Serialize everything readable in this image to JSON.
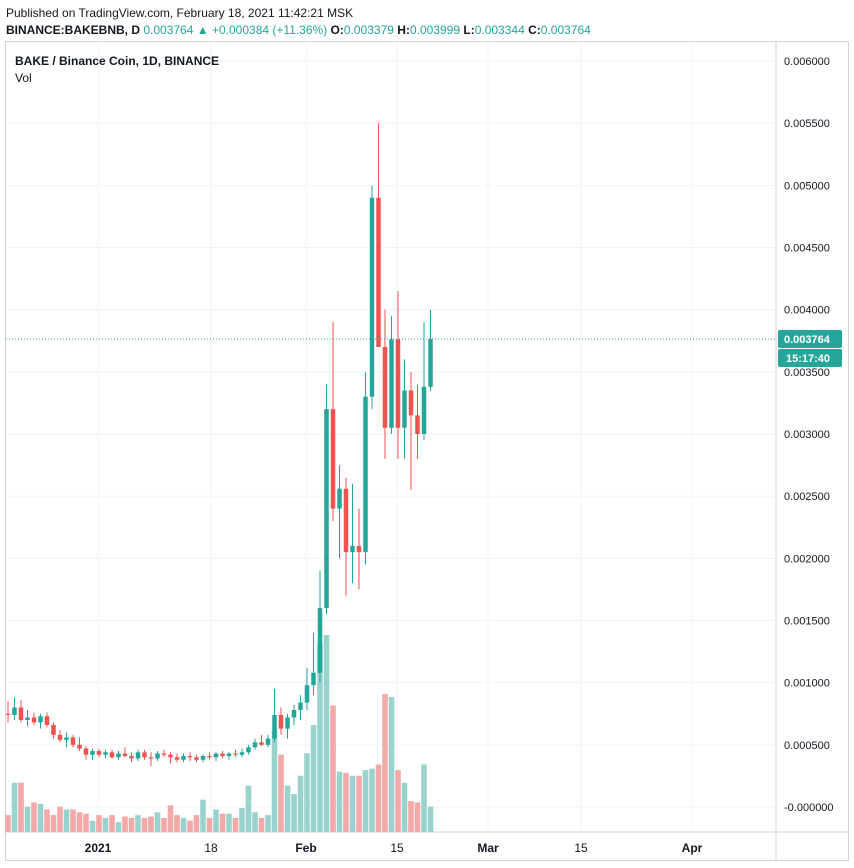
{
  "header": {
    "published": "Published on TradingView.com, February 18, 2021 11:42:21 MSK",
    "symbol": "BINANCE:BAKEBNB, D",
    "last": "0.003764",
    "change": "+0.000384 (+11.36%)",
    "o_label": "O:",
    "o_value": "0.003379",
    "h_label": "H:",
    "h_value": "0.003999",
    "l_label": "L:",
    "l_value": "0.003344",
    "c_label": "C:",
    "c_value": "0.003764"
  },
  "legend": {
    "title": "BAKE / Binance Coin, 1D, BINANCE",
    "vol": "Vol"
  },
  "colors": {
    "up": "#26a69a",
    "down": "#ef5350",
    "up_vol": "#9ad3cd",
    "down_vol": "#f3a9a8",
    "grid": "#f0f3fa",
    "axis": "#d1d4dc"
  },
  "chart_data": {
    "type": "candlestick",
    "price_scale_labels": [
      "0.006000",
      "0.005500",
      "0.005000",
      "0.004500",
      "0.004000",
      "0.003500",
      "0.003000",
      "0.002500",
      "0.002000",
      "0.001500",
      "0.001000",
      "0.000500",
      "-0.000000"
    ],
    "ylim": [
      -2.5e-05,
      0.00605
    ],
    "x_tick_labels": [
      "2021",
      "18",
      "Feb",
      "15",
      "Mar",
      "15",
      "Apr"
    ],
    "last_price_label": "0.003764",
    "countdown_label": "15:17:40",
    "candles": [
      {
        "o": 0.00075,
        "h": 0.00085,
        "l": 0.00068,
        "c": 0.00074,
        "v": 0.00012
      },
      {
        "o": 0.00074,
        "h": 0.00088,
        "l": 0.0007,
        "c": 0.0008,
        "v": 0.00035
      },
      {
        "o": 0.0008,
        "h": 0.00086,
        "l": 0.00068,
        "c": 0.0007,
        "v": 0.00035
      },
      {
        "o": 0.0007,
        "h": 0.00078,
        "l": 0.00065,
        "c": 0.00072,
        "v": 0.00018
      },
      {
        "o": 0.00072,
        "h": 0.00076,
        "l": 0.00066,
        "c": 0.00068,
        "v": 0.00021
      },
      {
        "o": 0.00068,
        "h": 0.00075,
        "l": 0.00063,
        "c": 0.00073,
        "v": 0.0002
      },
      {
        "o": 0.00073,
        "h": 0.00076,
        "l": 0.00064,
        "c": 0.00066,
        "v": 0.00016
      },
      {
        "o": 0.00066,
        "h": 0.00068,
        "l": 0.00055,
        "c": 0.00058,
        "v": 0.00012
      },
      {
        "o": 0.00058,
        "h": 0.00062,
        "l": 0.00052,
        "c": 0.00054,
        "v": 0.00018
      },
      {
        "o": 0.00054,
        "h": 0.0006,
        "l": 0.00048,
        "c": 0.00056,
        "v": 0.00016
      },
      {
        "o": 0.00056,
        "h": 0.00058,
        "l": 0.00048,
        "c": 0.0005,
        "v": 0.00016
      },
      {
        "o": 0.0005,
        "h": 0.00056,
        "l": 0.00045,
        "c": 0.00047,
        "v": 0.00014
      },
      {
        "o": 0.00047,
        "h": 0.00049,
        "l": 0.00038,
        "c": 0.00042,
        "v": 0.00013
      },
      {
        "o": 0.00042,
        "h": 0.00047,
        "l": 0.00038,
        "c": 0.00045,
        "v": 8e-05
      },
      {
        "o": 0.00045,
        "h": 0.00047,
        "l": 0.0004,
        "c": 0.00042,
        "v": 0.00012
      },
      {
        "o": 0.00042,
        "h": 0.00046,
        "l": 0.00039,
        "c": 0.00044,
        "v": 0.0001
      },
      {
        "o": 0.00044,
        "h": 0.00046,
        "l": 0.00039,
        "c": 0.0004,
        "v": 0.00012
      },
      {
        "o": 0.0004,
        "h": 0.00045,
        "l": 0.00038,
        "c": 0.00043,
        "v": 7e-05
      },
      {
        "o": 0.00043,
        "h": 0.00048,
        "l": 0.0004,
        "c": 0.00041,
        "v": 0.00011
      },
      {
        "o": 0.00041,
        "h": 0.00044,
        "l": 0.00036,
        "c": 0.00039,
        "v": 0.0001
      },
      {
        "o": 0.00039,
        "h": 0.00046,
        "l": 0.00037,
        "c": 0.00044,
        "v": 0.00012
      },
      {
        "o": 0.00044,
        "h": 0.00046,
        "l": 0.00038,
        "c": 0.0004,
        "v": 0.0001
      },
      {
        "o": 0.0004,
        "h": 0.00044,
        "l": 0.00033,
        "c": 0.00039,
        "v": 0.00011
      },
      {
        "o": 0.00039,
        "h": 0.00045,
        "l": 0.00037,
        "c": 0.00043,
        "v": 0.00014
      },
      {
        "o": 0.00043,
        "h": 0.00046,
        "l": 0.0004,
        "c": 0.00042,
        "v": 0.0001
      },
      {
        "o": 0.00042,
        "h": 0.00044,
        "l": 0.00035,
        "c": 0.0004,
        "v": 0.00019
      },
      {
        "o": 0.0004,
        "h": 0.00043,
        "l": 0.00036,
        "c": 0.00038,
        "v": 0.00012
      },
      {
        "o": 0.00038,
        "h": 0.00043,
        "l": 0.00036,
        "c": 0.00041,
        "v": 0.0001
      },
      {
        "o": 0.00041,
        "h": 0.00044,
        "l": 0.00037,
        "c": 0.0004,
        "v": 8e-05
      },
      {
        "o": 0.0004,
        "h": 0.00042,
        "l": 0.00036,
        "c": 0.00038,
        "v": 0.00012
      },
      {
        "o": 0.00038,
        "h": 0.00042,
        "l": 0.00036,
        "c": 0.00041,
        "v": 0.00023
      },
      {
        "o": 0.00041,
        "h": 0.00044,
        "l": 0.00038,
        "c": 0.0004,
        "v": 0.0001
      },
      {
        "o": 0.0004,
        "h": 0.00044,
        "l": 0.00037,
        "c": 0.00043,
        "v": 0.00016
      },
      {
        "o": 0.00043,
        "h": 0.00045,
        "l": 0.00039,
        "c": 0.00041,
        "v": 0.00013
      },
      {
        "o": 0.00041,
        "h": 0.00044,
        "l": 0.00038,
        "c": 0.00043,
        "v": 0.00013
      },
      {
        "o": 0.00043,
        "h": 0.00046,
        "l": 0.0004,
        "c": 0.00042,
        "v": 0.0001
      },
      {
        "o": 0.00042,
        "h": 0.00047,
        "l": 0.0004,
        "c": 0.00044,
        "v": 0.00017
      },
      {
        "o": 0.00044,
        "h": 0.0005,
        "l": 0.00042,
        "c": 0.00048,
        "v": 0.00033
      },
      {
        "o": 0.00048,
        "h": 0.00055,
        "l": 0.00046,
        "c": 0.00052,
        "v": 0.00014
      },
      {
        "o": 0.00052,
        "h": 0.00058,
        "l": 0.00049,
        "c": 0.0005,
        "v": 0.0001
      },
      {
        "o": 0.0005,
        "h": 0.00058,
        "l": 0.00048,
        "c": 0.00055,
        "v": 0.00012
      },
      {
        "o": 0.00055,
        "h": 0.00095,
        "l": 0.00052,
        "c": 0.00074,
        "v": 0.00074
      },
      {
        "o": 0.00074,
        "h": 0.0008,
        "l": 0.00058,
        "c": 0.00063,
        "v": 0.00055
      },
      {
        "o": 0.00063,
        "h": 0.00075,
        "l": 0.00055,
        "c": 0.00072,
        "v": 0.00033
      },
      {
        "o": 0.00072,
        "h": 0.00082,
        "l": 0.00066,
        "c": 0.00078,
        "v": 0.00027
      },
      {
        "o": 0.00078,
        "h": 0.0009,
        "l": 0.0007,
        "c": 0.00084,
        "v": 0.0004
      },
      {
        "o": 0.00084,
        "h": 0.00112,
        "l": 0.00078,
        "c": 0.00098,
        "v": 0.00056
      },
      {
        "o": 0.00098,
        "h": 0.0014,
        "l": 0.0009,
        "c": 0.00108,
        "v": 0.00076
      },
      {
        "o": 0.00108,
        "h": 0.0019,
        "l": 0.001,
        "c": 0.0016,
        "v": 0.00135
      },
      {
        "o": 0.0016,
        "h": 0.0034,
        "l": 0.00155,
        "c": 0.0032,
        "v": 0.0014
      },
      {
        "o": 0.0032,
        "h": 0.0039,
        "l": 0.0023,
        "c": 0.0024,
        "v": 0.0009
      },
      {
        "o": 0.0024,
        "h": 0.00275,
        "l": 0.002,
        "c": 0.00256,
        "v": 0.00043
      },
      {
        "o": 0.00256,
        "h": 0.00265,
        "l": 0.0017,
        "c": 0.00205,
        "v": 0.00042
      },
      {
        "o": 0.00205,
        "h": 0.0026,
        "l": 0.0018,
        "c": 0.0021,
        "v": 0.0004
      },
      {
        "o": 0.0021,
        "h": 0.0024,
        "l": 0.00175,
        "c": 0.00205,
        "v": 0.0004
      },
      {
        "o": 0.00205,
        "h": 0.0035,
        "l": 0.00195,
        "c": 0.0033,
        "v": 0.00044
      },
      {
        "o": 0.0033,
        "h": 0.005,
        "l": 0.0032,
        "c": 0.0049,
        "v": 0.00045
      },
      {
        "o": 0.0049,
        "h": 0.0055,
        "l": 0.0037,
        "c": 0.0037,
        "v": 0.00048
      },
      {
        "o": 0.0037,
        "h": 0.004,
        "l": 0.0028,
        "c": 0.00305,
        "v": 0.00098
      },
      {
        "o": 0.00305,
        "h": 0.00395,
        "l": 0.003,
        "c": 0.00376,
        "v": 0.00096
      },
      {
        "o": 0.00376,
        "h": 0.00415,
        "l": 0.0028,
        "c": 0.00305,
        "v": 0.00044
      },
      {
        "o": 0.00305,
        "h": 0.0036,
        "l": 0.0028,
        "c": 0.00335,
        "v": 0.00035
      },
      {
        "o": 0.00335,
        "h": 0.0035,
        "l": 0.00255,
        "c": 0.00315,
        "v": 0.00022
      },
      {
        "o": 0.00315,
        "h": 0.0034,
        "l": 0.0028,
        "c": 0.003,
        "v": 0.00021
      },
      {
        "o": 0.003,
        "h": 0.0039,
        "l": 0.00295,
        "c": 0.00338,
        "v": 0.00048
      },
      {
        "o": 0.003379,
        "h": 0.003999,
        "l": 0.003344,
        "c": 0.003764,
        "v": 0.00018
      }
    ]
  }
}
